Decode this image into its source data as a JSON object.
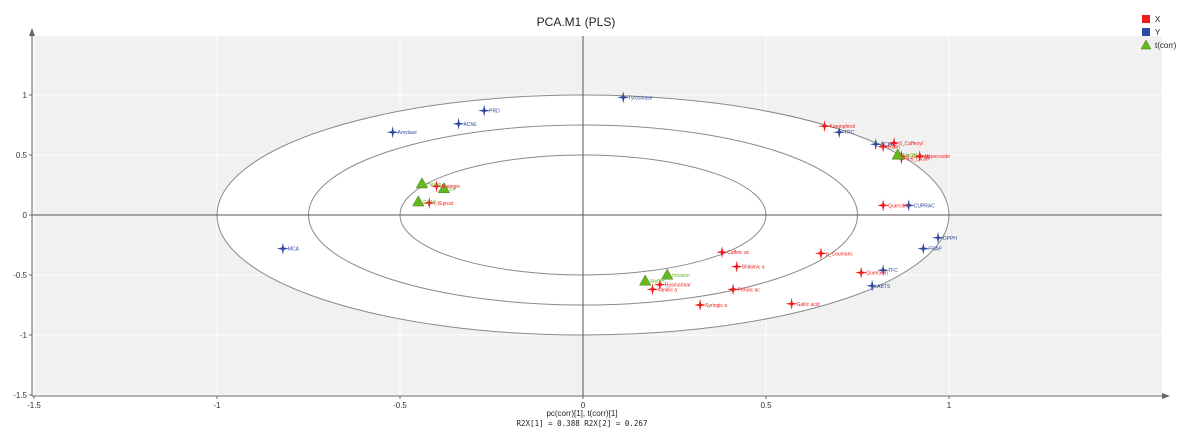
{
  "chart_data": {
    "type": "scatter",
    "title": "PCA.M1 (PLS)",
    "xlabel": "pc(corr)[1], t(corr)[1]",
    "footer": "R2X[1] = 0.388 R2X[2] = 0.267",
    "xlim": [
      -1.5,
      1.5
    ],
    "ylim": [
      -1.5,
      1.5
    ],
    "x_ticks": [
      -1.5,
      -1,
      -0.5,
      0,
      0.5,
      1
    ],
    "x_tick_labels": [
      "-1.5",
      "-1",
      "-0.5",
      "0",
      "0.5",
      "1"
    ],
    "y_ticks": [
      1,
      0.5,
      0,
      -0.5,
      -1,
      -1.5
    ],
    "y_tick_labels": [
      "1",
      "0.5",
      "0",
      "-0.5",
      "-1",
      "-1.5"
    ],
    "ellipses": [
      {
        "rx": 1.0,
        "ry": 1.0
      },
      {
        "rx": 0.75,
        "ry": 0.75
      },
      {
        "rx": 0.5,
        "ry": 0.5
      }
    ],
    "legend": {
      "position": "top-right",
      "entries": [
        {
          "label": "X",
          "color": "#ee1c1c",
          "marker": "square"
        },
        {
          "label": "Y",
          "color": "#2f4aa0",
          "marker": "square"
        },
        {
          "label": "t(corr)",
          "color": "#66b820",
          "marker": "triangle"
        }
      ]
    },
    "series": [
      {
        "name": "X",
        "color": "#ee1c1c",
        "marker": "star",
        "points": [
          {
            "x": 0.66,
            "y": 0.74,
            "label": "Kaempferol"
          },
          {
            "x": 0.82,
            "y": 0.57,
            "label": "Rutin"
          },
          {
            "x": 0.85,
            "y": 0.6,
            "label": "3_Caffeoyl"
          },
          {
            "x": 0.87,
            "y": 0.49,
            "label": "4_Caffeoyl"
          },
          {
            "x": 0.87,
            "y": 0.47,
            "label": "3,5_Dicaff"
          },
          {
            "x": 0.92,
            "y": 0.49,
            "label": "Hyperoside"
          },
          {
            "x": 0.82,
            "y": 0.08,
            "label": "Quercitrin"
          },
          {
            "x": 0.76,
            "y": -0.48,
            "label": "Quercetin"
          },
          {
            "x": 0.65,
            "y": -0.32,
            "label": "p_Coumaric"
          },
          {
            "x": 0.57,
            "y": -0.74,
            "label": "Gallic acid"
          },
          {
            "x": 0.38,
            "y": -0.31,
            "label": "Caffeic ac"
          },
          {
            "x": 0.42,
            "y": -0.43,
            "label": "Shikimic a"
          },
          {
            "x": 0.41,
            "y": -0.62,
            "label": "Ferulic ac"
          },
          {
            "x": 0.32,
            "y": -0.75,
            "label": "Syringic a"
          },
          {
            "x": 0.21,
            "y": -0.58,
            "label": "Rosmarinar"
          },
          {
            "x": 0.19,
            "y": -0.62,
            "label": "Vanillic a"
          },
          {
            "x": -0.4,
            "y": 0.24,
            "label": "Naringin"
          },
          {
            "x": -0.42,
            "y": 0.1,
            "label": "(-)Epicat"
          }
        ]
      },
      {
        "name": "Y",
        "color": "#2f4aa0",
        "marker": "star",
        "points": [
          {
            "x": 0.11,
            "y": 0.98,
            "label": "Tyrosinase"
          },
          {
            "x": -0.27,
            "y": 0.87,
            "label": "PRD"
          },
          {
            "x": -0.34,
            "y": 0.76,
            "label": "AChE"
          },
          {
            "x": -0.52,
            "y": 0.69,
            "label": "Amylase"
          },
          {
            "x": 0.7,
            "y": 0.69,
            "label": "TPC"
          },
          {
            "x": 0.8,
            "y": 0.59,
            "label": "BChE"
          },
          {
            "x": 0.89,
            "y": 0.08,
            "label": "CUPRAC"
          },
          {
            "x": 0.97,
            "y": -0.19,
            "label": "DPPH"
          },
          {
            "x": 0.93,
            "y": -0.28,
            "label": "FRAP"
          },
          {
            "x": 0.82,
            "y": -0.46,
            "label": "TFC"
          },
          {
            "x": 0.79,
            "y": -0.59,
            "label": "ABTS"
          },
          {
            "x": -0.82,
            "y": -0.28,
            "label": "MCA"
          }
        ]
      },
      {
        "name": "t(corr)",
        "color": "#66b820",
        "marker": "triangle",
        "points": [
          {
            "x": -0.44,
            "y": 0.26,
            "label": "Hexan"
          },
          {
            "x": -0.38,
            "y": 0.22,
            "label": "EA"
          },
          {
            "x": -0.45,
            "y": 0.11,
            "label": "DCM"
          },
          {
            "x": 0.23,
            "y": -0.5,
            "label": "Infusion"
          },
          {
            "x": 0.17,
            "y": -0.55,
            "label": "MeOH"
          },
          {
            "x": 0.86,
            "y": 0.5,
            "label": "MeOH"
          }
        ]
      }
    ]
  }
}
